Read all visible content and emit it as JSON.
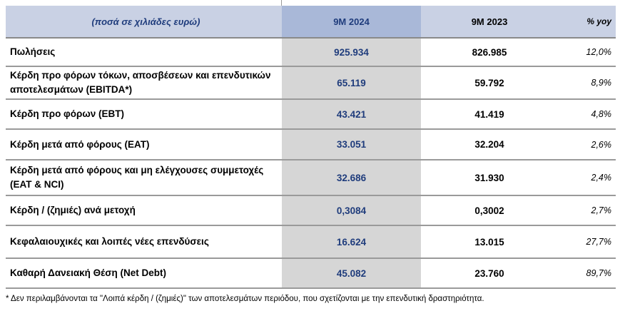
{
  "header": {
    "description": "(ποσά σε χιλιάδες ευρώ)",
    "col_current": "9M 2024",
    "col_prior": "9M 2023",
    "col_change": "% yoy"
  },
  "rows": [
    {
      "label": "Πωλήσεις",
      "current": "925.934",
      "prior": "826.985",
      "change": "12,0%"
    },
    {
      "label": "Κέρδη προ φόρων τόκων, αποσβέσεων και επενδυτικών αποτελεσμάτων (EBITDA*)",
      "current": "65.119",
      "prior": "59.792",
      "change": "8,9%"
    },
    {
      "label": "Κέρδη προ φόρων (EBT)",
      "current": "43.421",
      "prior": "41.419",
      "change": "4,8%"
    },
    {
      "label": "Κέρδη μετά από φόρους (EAT)",
      "current": "33.051",
      "prior": "32.204",
      "change": "2,6%"
    },
    {
      "label": "Κέρδη μετά από φόρους και μη ελέγχουσες συμμετοχές (EAT & NCI)",
      "current": "32.686",
      "prior": "31.930",
      "change": "2,4%"
    },
    {
      "label": "Κέρδη / (ζημιές) ανά μετοχή",
      "current": "0,3084",
      "prior": "0,3002",
      "change": "2,7%"
    },
    {
      "label": "Κεφαλαιουχικές και λοιπές νέες επενδύσεις",
      "current": "16.624",
      "prior": "13.015",
      "change": "27,7%"
    },
    {
      "label": "Καθαρή Δανειακή Θέση (Net Debt)",
      "current": "45.082",
      "prior": "23.760",
      "change": "89,7%"
    }
  ],
  "footnote": "* Δεν περιλαμβάνονται τα \"Λοιπά κέρδη / (ζημιές)\" των αποτελεσμάτων περιόδου, που σχετίζονται με την επενδυτική δραστηριότητα.",
  "colors": {
    "header_bg": "#c9d1e4",
    "header_highlight": "#a9b8d8",
    "current_col_bg": "#d6d6d6",
    "accent_text": "#1f3c7c"
  }
}
